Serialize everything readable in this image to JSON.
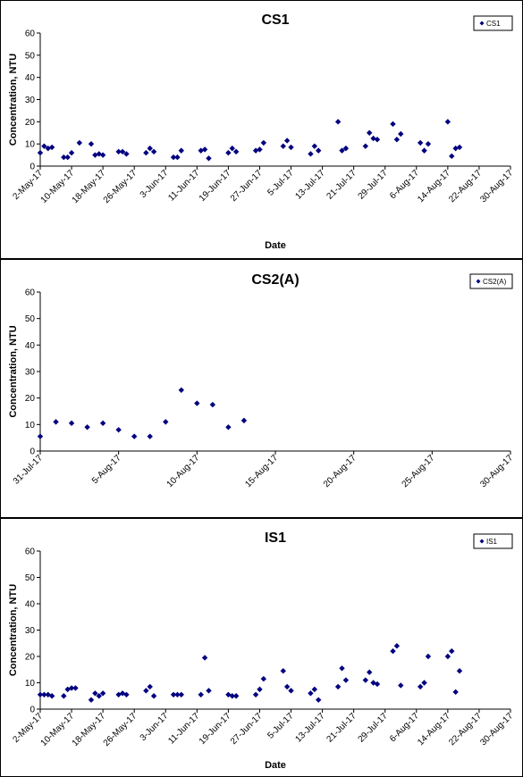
{
  "chart_data": [
    {
      "type": "scatter",
      "title": "CS1",
      "xlabel": "Date",
      "ylabel": "Concentration, NTU",
      "legend": "top-right",
      "marker_color": "#000080",
      "xlim": [
        "2017-05-02",
        "2017-08-30"
      ],
      "ylim": [
        0,
        60
      ],
      "yticks": [
        0,
        10,
        20,
        30,
        40,
        50,
        60
      ],
      "xtick_labels": [
        "2-May-17",
        "10-May-17",
        "18-May-17",
        "26-May-17",
        "3-Jun-17",
        "11-Jun-17",
        "19-Jun-17",
        "27-Jun-17",
        "5-Jul-17",
        "13-Jul-17",
        "21-Jul-17",
        "29-Jul-17",
        "6-Aug-17",
        "14-Aug-17",
        "22-Aug-17",
        "30-Aug-17"
      ],
      "series": [
        {
          "name": "CS1",
          "points": [
            [
              "2017-05-02",
              6
            ],
            [
              "2017-05-03",
              9
            ],
            [
              "2017-05-04",
              8
            ],
            [
              "2017-05-05",
              8.5
            ],
            [
              "2017-05-08",
              4
            ],
            [
              "2017-05-09",
              4
            ],
            [
              "2017-05-10",
              6
            ],
            [
              "2017-05-12",
              10.5
            ],
            [
              "2017-05-15",
              10
            ],
            [
              "2017-05-16",
              5
            ],
            [
              "2017-05-17",
              5.5
            ],
            [
              "2017-05-18",
              5
            ],
            [
              "2017-05-22",
              6.5
            ],
            [
              "2017-05-23",
              6.5
            ],
            [
              "2017-05-24",
              5.5
            ],
            [
              "2017-05-29",
              6
            ],
            [
              "2017-05-30",
              8
            ],
            [
              "2017-05-31",
              6.5
            ],
            [
              "2017-06-05",
              4
            ],
            [
              "2017-06-06",
              4
            ],
            [
              "2017-06-07",
              7
            ],
            [
              "2017-06-12",
              7
            ],
            [
              "2017-06-13",
              7.5
            ],
            [
              "2017-06-14",
              3.5
            ],
            [
              "2017-06-19",
              6
            ],
            [
              "2017-06-20",
              8
            ],
            [
              "2017-06-21",
              6.5
            ],
            [
              "2017-06-26",
              7
            ],
            [
              "2017-06-27",
              7.5
            ],
            [
              "2017-06-28",
              10.5
            ],
            [
              "2017-07-03",
              9
            ],
            [
              "2017-07-04",
              11.5
            ],
            [
              "2017-07-05",
              8.5
            ],
            [
              "2017-07-10",
              5.5
            ],
            [
              "2017-07-11",
              9
            ],
            [
              "2017-07-12",
              7
            ],
            [
              "2017-07-17",
              20
            ],
            [
              "2017-07-18",
              7
            ],
            [
              "2017-07-19",
              8
            ],
            [
              "2017-07-24",
              9
            ],
            [
              "2017-07-25",
              15
            ],
            [
              "2017-07-26",
              12.5
            ],
            [
              "2017-07-27",
              12
            ],
            [
              "2017-07-31",
              19
            ],
            [
              "2017-08-01",
              12
            ],
            [
              "2017-08-02",
              14.5
            ],
            [
              "2017-08-07",
              10.5
            ],
            [
              "2017-08-08",
              7
            ],
            [
              "2017-08-09",
              10
            ],
            [
              "2017-08-14",
              20
            ],
            [
              "2017-08-15",
              4.5
            ],
            [
              "2017-08-16",
              8
            ],
            [
              "2017-08-17",
              8.5
            ]
          ]
        }
      ]
    },
    {
      "type": "scatter",
      "title": "CS2(A)",
      "xlabel": "",
      "ylabel": "Concentration, NTU",
      "legend": "top-right",
      "marker_color": "#000080",
      "xlim": [
        "2017-07-31",
        "2017-08-30"
      ],
      "ylim": [
        0,
        60
      ],
      "yticks": [
        0,
        10,
        20,
        30,
        40,
        50,
        60
      ],
      "xtick_labels": [
        "31-Jul-17",
        "5-Aug-17",
        "10-Aug-17",
        "15-Aug-17",
        "20-Aug-17",
        "25-Aug-17",
        "30-Aug-17"
      ],
      "series": [
        {
          "name": "CS2(A)",
          "points": [
            [
              "2017-07-31",
              5.5
            ],
            [
              "2017-08-01",
              11
            ],
            [
              "2017-08-02",
              10.5
            ],
            [
              "2017-08-03",
              9
            ],
            [
              "2017-08-04",
              10.5
            ],
            [
              "2017-08-05",
              8
            ],
            [
              "2017-08-06",
              5.5
            ],
            [
              "2017-08-07",
              5.5
            ],
            [
              "2017-08-08",
              11
            ],
            [
              "2017-08-09",
              23
            ],
            [
              "2017-08-10",
              18
            ],
            [
              "2017-08-11",
              17.5
            ],
            [
              "2017-08-12",
              9
            ],
            [
              "2017-08-13",
              11.5
            ]
          ]
        }
      ]
    },
    {
      "type": "scatter",
      "title": "IS1",
      "xlabel": "Date",
      "ylabel": "Concentration, NTU",
      "legend": "top-right",
      "marker_color": "#000080",
      "xlim": [
        "2017-05-02",
        "2017-08-30"
      ],
      "ylim": [
        0,
        60
      ],
      "yticks": [
        0,
        10,
        20,
        30,
        40,
        50,
        60
      ],
      "xtick_labels": [
        "2-May-17",
        "10-May-17",
        "18-May-17",
        "26-May-17",
        "3-Jun-17",
        "11-Jun-17",
        "19-Jun-17",
        "27-Jun-17",
        "5-Jul-17",
        "13-Jul-17",
        "21-Jul-17",
        "29-Jul-17",
        "6-Aug-17",
        "14-Aug-17",
        "22-Aug-17",
        "30-Aug-17"
      ],
      "series": [
        {
          "name": "IS1",
          "points": [
            [
              "2017-05-02",
              5.5
            ],
            [
              "2017-05-03",
              5.5
            ],
            [
              "2017-05-04",
              5.5
            ],
            [
              "2017-05-05",
              5
            ],
            [
              "2017-05-08",
              5
            ],
            [
              "2017-05-09",
              7.5
            ],
            [
              "2017-05-10",
              8
            ],
            [
              "2017-05-11",
              8
            ],
            [
              "2017-05-15",
              3.5
            ],
            [
              "2017-05-16",
              6
            ],
            [
              "2017-05-17",
              5
            ],
            [
              "2017-05-18",
              6
            ],
            [
              "2017-05-22",
              5.5
            ],
            [
              "2017-05-23",
              6
            ],
            [
              "2017-05-24",
              5.5
            ],
            [
              "2017-05-29",
              7
            ],
            [
              "2017-05-30",
              8.5
            ],
            [
              "2017-05-31",
              5
            ],
            [
              "2017-06-05",
              5.5
            ],
            [
              "2017-06-06",
              5.5
            ],
            [
              "2017-06-07",
              5.5
            ],
            [
              "2017-06-12",
              5.5
            ],
            [
              "2017-06-13",
              19.5
            ],
            [
              "2017-06-14",
              7
            ],
            [
              "2017-06-19",
              5.5
            ],
            [
              "2017-06-20",
              5
            ],
            [
              "2017-06-21",
              5
            ],
            [
              "2017-06-26",
              5.5
            ],
            [
              "2017-06-27",
              7.5
            ],
            [
              "2017-06-28",
              11.5
            ],
            [
              "2017-07-03",
              14.5
            ],
            [
              "2017-07-04",
              8.5
            ],
            [
              "2017-07-05",
              7
            ],
            [
              "2017-07-10",
              6
            ],
            [
              "2017-07-11",
              7.5
            ],
            [
              "2017-07-12",
              3.5
            ],
            [
              "2017-07-17",
              8.5
            ],
            [
              "2017-07-18",
              15.5
            ],
            [
              "2017-07-19",
              11
            ],
            [
              "2017-07-24",
              11
            ],
            [
              "2017-07-25",
              14
            ],
            [
              "2017-07-26",
              10
            ],
            [
              "2017-07-27",
              9.5
            ],
            [
              "2017-07-31",
              22
            ],
            [
              "2017-08-01",
              24
            ],
            [
              "2017-08-02",
              9
            ],
            [
              "2017-08-07",
              8.5
            ],
            [
              "2017-08-08",
              10
            ],
            [
              "2017-08-09",
              20
            ],
            [
              "2017-08-14",
              20
            ],
            [
              "2017-08-15",
              22
            ],
            [
              "2017-08-16",
              6.5
            ],
            [
              "2017-08-17",
              14.5
            ]
          ]
        }
      ]
    }
  ]
}
